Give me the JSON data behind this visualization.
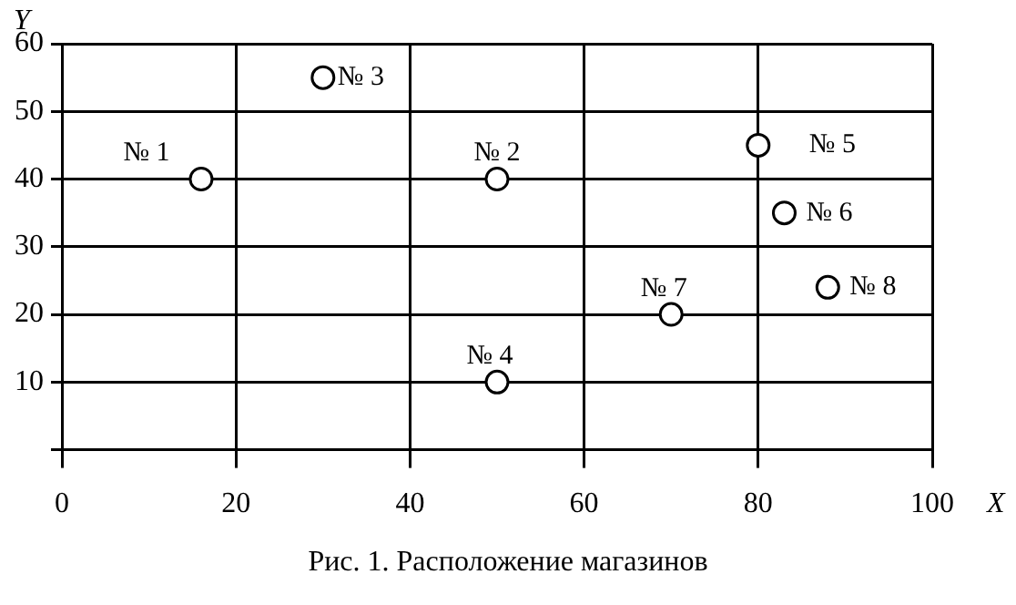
{
  "chart_data": {
    "type": "scatter",
    "xlabel": "X",
    "ylabel": "Y",
    "x": [
      16,
      50,
      30,
      50,
      80,
      83,
      70,
      88
    ],
    "values": [
      40,
      40,
      55,
      10,
      45,
      35,
      20,
      24
    ],
    "color": "#000000",
    "marker": "circle",
    "xlim": [
      0,
      100
    ],
    "xticks": [
      0,
      20,
      40,
      60,
      80,
      100
    ],
    "ylim": [
      0,
      60
    ],
    "yticks": [
      {
        "value": 0,
        "label": null
      },
      10,
      20,
      30,
      40,
      50,
      60
    ],
    "grid": true,
    "annotations": [
      {
        "text": "№ 1",
        "x": 16,
        "y": 40
      },
      {
        "text": "№ 2",
        "x": 50,
        "y": 40
      },
      {
        "text": "№ 3",
        "x": 30,
        "y": 55
      },
      {
        "text": "№ 4",
        "x": 50,
        "y": 10
      },
      {
        "text": "№ 5",
        "x": 80,
        "y": 45
      },
      {
        "text": "№ 6",
        "x": 83,
        "y": 35
      },
      {
        "text": "№ 7",
        "x": 70,
        "y": 20
      },
      {
        "text": "№ 8",
        "x": 88,
        "y": 24
      },
      "Рис. 1. Расположение магазинов"
    ]
  }
}
